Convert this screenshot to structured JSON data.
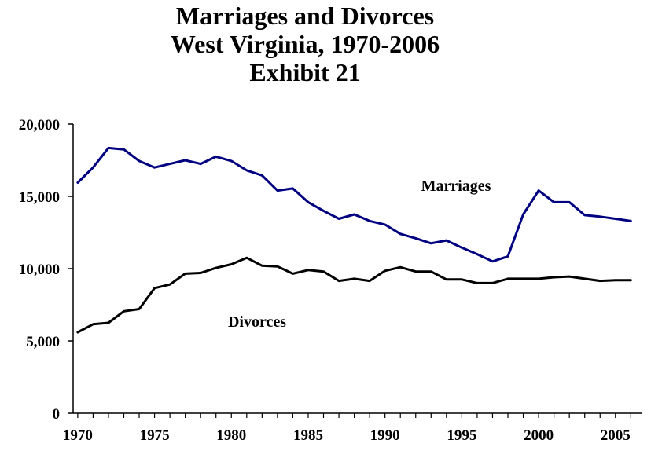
{
  "chart_data": {
    "type": "line",
    "title": [
      "Marriages and Divorces",
      "West Virginia, 1970-2006",
      "Exhibit 21"
    ],
    "xlabel": "",
    "ylabel": "",
    "xlim": [
      1970,
      2006
    ],
    "ylim": [
      0,
      20000
    ],
    "x_ticks": [
      1970,
      1975,
      1980,
      1985,
      1990,
      1995,
      2000,
      2005
    ],
    "y_ticks": [
      0,
      5000,
      10000,
      15000,
      20000
    ],
    "y_tick_labels": [
      "0",
      "5,000",
      "10,000",
      "15,000",
      "20,000"
    ],
    "grid": false,
    "x": [
      1970,
      1971,
      1972,
      1973,
      1974,
      1975,
      1976,
      1977,
      1978,
      1979,
      1980,
      1981,
      1982,
      1983,
      1984,
      1985,
      1986,
      1987,
      1988,
      1989,
      1990,
      1991,
      1992,
      1993,
      1994,
      1995,
      1996,
      1997,
      1998,
      1999,
      2000,
      2001,
      2002,
      2003,
      2004,
      2005,
      2006
    ],
    "series": [
      {
        "name": "Marriages",
        "color": "#000080",
        "values": [
          15950,
          17000,
          18350,
          18250,
          17450,
          17000,
          17250,
          17500,
          17250,
          17750,
          17450,
          16800,
          16450,
          15400,
          15550,
          14600,
          14000,
          13450,
          13750,
          13300,
          13050,
          12400,
          12100,
          11750,
          11950,
          11450,
          11000,
          10500,
          10850,
          13750,
          15400,
          14600,
          14600,
          13700,
          13600,
          13450,
          13300
        ]
      },
      {
        "name": "Divorces",
        "color": "#000000",
        "values": [
          5600,
          6150,
          6250,
          7050,
          7200,
          8650,
          8900,
          9650,
          9700,
          10050,
          10300,
          10750,
          10200,
          10150,
          9650,
          9900,
          9800,
          9150,
          9300,
          9150,
          9850,
          10100,
          9800,
          9800,
          9250,
          9250,
          9000,
          9000,
          9300,
          9300,
          9300,
          9400,
          9450,
          9300,
          9150,
          9200,
          9200
        ]
      }
    ]
  }
}
